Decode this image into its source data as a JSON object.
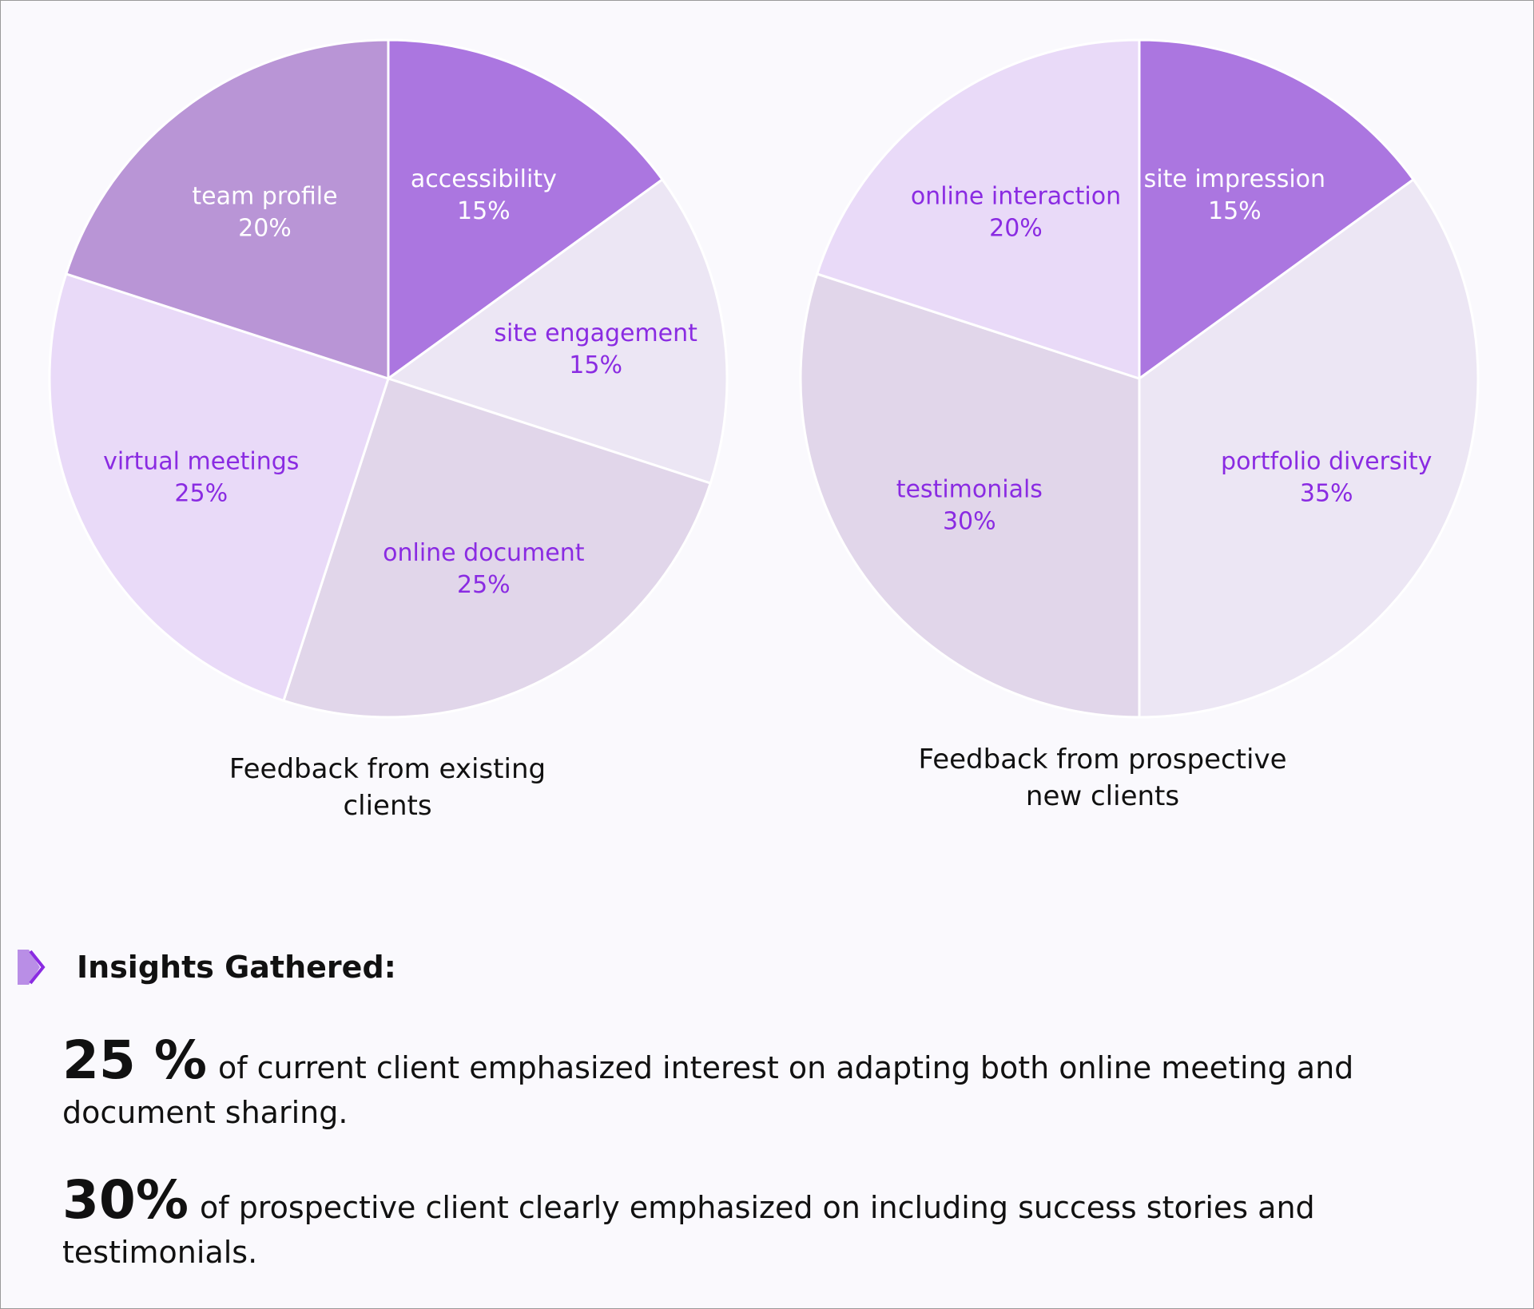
{
  "chart_data": [
    {
      "type": "pie",
      "title": "Feedback from existing clients",
      "slices": [
        {
          "label": "accessibility",
          "value": 15,
          "display": "15%",
          "color": "#ab76e0",
          "text_color": "#ffffff"
        },
        {
          "label": "site engagement",
          "value": 15,
          "display": "15%",
          "color": "#ece6f4",
          "text_color": "#8a2be2"
        },
        {
          "label": "online document",
          "value": 25,
          "display": "25%",
          "color": "#e1d6ea",
          "text_color": "#8a2be2"
        },
        {
          "label": "virtual meetings",
          "value": 25,
          "display": "25%",
          "color": "#e9daf8",
          "text_color": "#8a2be2"
        },
        {
          "label": "team profile",
          "value": 20,
          "display": "20%",
          "color": "#b995d6",
          "text_color": "#ffffff"
        }
      ]
    },
    {
      "type": "pie",
      "title": "Feedback from prospective new clients",
      "slices": [
        {
          "label": "site impression",
          "value": 15,
          "display": "15%",
          "color": "#ab76e0",
          "text_color": "#ffffff"
        },
        {
          "label": "portfolio diversity",
          "value": 35,
          "display": "35%",
          "color": "#ece6f4",
          "text_color": "#8a2be2"
        },
        {
          "label": "testimonials",
          "value": 30,
          "display": "30%",
          "color": "#e1d6ea",
          "text_color": "#8a2be2"
        },
        {
          "label": "online interaction",
          "value": 20,
          "display": "20%",
          "color": "#e9daf8",
          "text_color": "#8a2be2"
        }
      ]
    }
  ],
  "captions": {
    "left_line1": "Feedback from existing",
    "left_line2": "clients",
    "right_line1": "Feedback from prospective",
    "right_line2": "new clients"
  },
  "insights": {
    "heading": "Insights Gathered:",
    "icon": "double-chevron-right-icon",
    "items": [
      {
        "figure": "25 %",
        "text": "of current client emphasized interest on adapting both online meeting and document sharing."
      },
      {
        "figure": "30%",
        "text": "of prospective client clearly emphasized on including success stories and testimonials."
      }
    ]
  }
}
